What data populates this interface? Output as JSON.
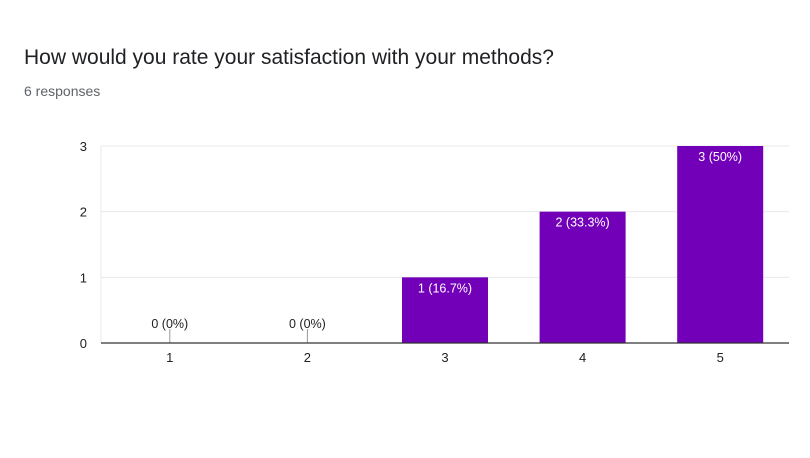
{
  "question": {
    "title": "How would you rate your satisfaction with your methods?",
    "responses": "6 responses"
  },
  "colors": {
    "bar": "#7300b9",
    "grid": "#e8e8e8",
    "axis": "#333333",
    "text": "#202124",
    "bar_label_inside": "#ffffff"
  },
  "chart_data": {
    "type": "bar",
    "categories": [
      "1",
      "2",
      "3",
      "4",
      "5"
    ],
    "values": [
      0,
      0,
      1,
      2,
      3
    ],
    "data_labels": [
      "0 (0%)",
      "0 (0%)",
      "1 (16.7%)",
      "2 (33.3%)",
      "3 (50%)"
    ],
    "yticks": [
      0,
      1,
      2,
      3
    ],
    "ylim": [
      0,
      3
    ],
    "grid": true,
    "legend": "none"
  }
}
